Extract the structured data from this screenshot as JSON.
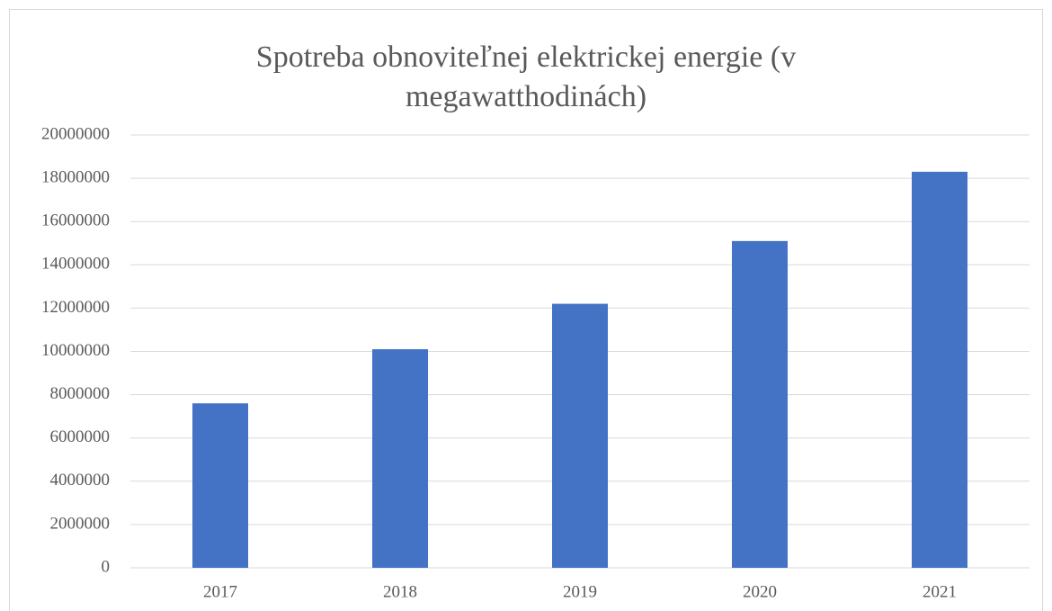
{
  "chart_data": {
    "type": "bar",
    "title": "Spotreba obnoviteľnej elektrickej energie (v megawatthodinách)",
    "categories": [
      "2017",
      "2018",
      "2019",
      "2020",
      "2021"
    ],
    "values": [
      7600000,
      10100000,
      12200000,
      15100000,
      18300000
    ],
    "color": "#4472c4",
    "ylim": [
      0,
      20000000
    ],
    "yticks": [
      0,
      2000000,
      4000000,
      6000000,
      8000000,
      10000000,
      12000000,
      14000000,
      16000000,
      18000000,
      20000000
    ],
    "grid": true
  }
}
